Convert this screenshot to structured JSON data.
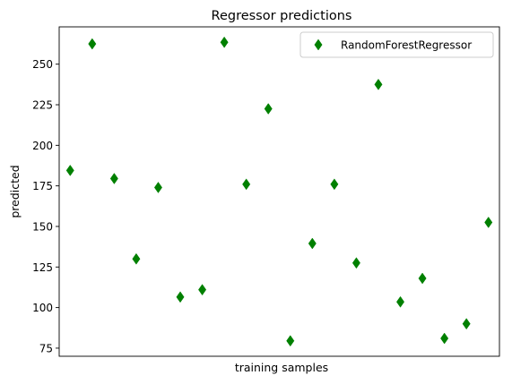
{
  "chart_data": {
    "type": "scatter",
    "title": "Regressor predictions",
    "xlabel": "training samples",
    "ylabel": "predicted",
    "x_ticks_visible": false,
    "ylim": [
      70,
      273
    ],
    "xlim": [
      -0.5,
      19.5
    ],
    "y_ticks": [
      75,
      100,
      125,
      150,
      175,
      200,
      225,
      250
    ],
    "grid": false,
    "legend_position": "top-right",
    "series": [
      {
        "name": "RandomForestRegressor",
        "marker": "thin-diamond",
        "color": "#008000",
        "x": [
          0,
          1,
          2,
          3,
          4,
          5,
          6,
          7,
          8,
          9,
          10,
          11,
          12,
          13,
          14,
          15,
          16,
          17,
          18,
          19
        ],
        "y": [
          184.5,
          262.5,
          179.5,
          130,
          174,
          106.5,
          111,
          263.5,
          176,
          222.5,
          79.5,
          139.5,
          176,
          127.5,
          237.5,
          103.5,
          118,
          81,
          90,
          152.5
        ]
      }
    ]
  }
}
